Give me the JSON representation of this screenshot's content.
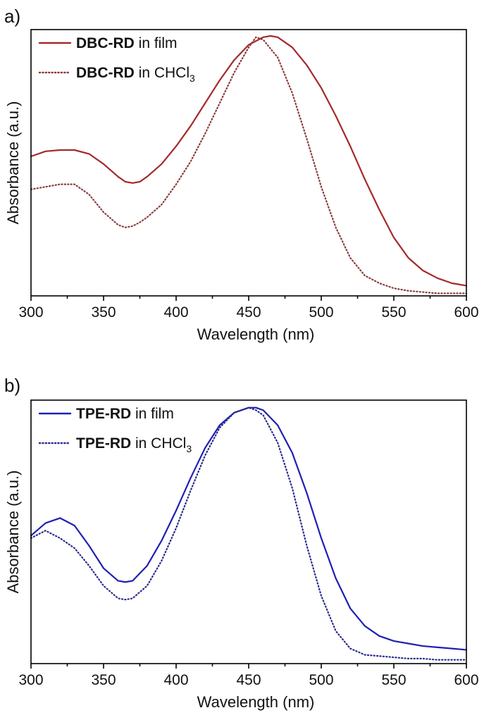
{
  "chart_data": [
    {
      "panel_label": "a)",
      "type": "line",
      "xlabel": "Wavelength (nm)",
      "ylabel": "Absorbance (a.u.)",
      "xlim": [
        300,
        600
      ],
      "ylim": [
        0,
        1.05
      ],
      "xticks": [
        "300",
        "350",
        "400",
        "450",
        "500",
        "550",
        "600"
      ],
      "yticks_shown": false,
      "legend_position": "top-left",
      "series": [
        {
          "name_bold": "DBC-RD",
          "name_rest": " in film",
          "name_sub": "",
          "color": "#a52a2a",
          "dash": "solid",
          "x": [
            300,
            310,
            320,
            330,
            340,
            350,
            360,
            365,
            370,
            375,
            380,
            390,
            400,
            410,
            420,
            430,
            440,
            450,
            460,
            465,
            470,
            480,
            490,
            500,
            510,
            520,
            530,
            540,
            550,
            560,
            570,
            580,
            590,
            600
          ],
          "y": [
            0.55,
            0.57,
            0.575,
            0.575,
            0.56,
            0.52,
            0.47,
            0.45,
            0.445,
            0.45,
            0.47,
            0.52,
            0.59,
            0.67,
            0.76,
            0.85,
            0.93,
            0.99,
            1.02,
            1.025,
            1.02,
            0.98,
            0.91,
            0.82,
            0.71,
            0.59,
            0.46,
            0.34,
            0.23,
            0.15,
            0.1,
            0.07,
            0.05,
            0.04
          ]
        },
        {
          "name_bold": "DBC-RD",
          "name_rest": " in CHCl",
          "name_sub": "3",
          "color": "#8b3a3a",
          "dash": "dotted",
          "x": [
            300,
            310,
            320,
            330,
            340,
            350,
            360,
            365,
            370,
            375,
            380,
            390,
            400,
            410,
            420,
            430,
            440,
            450,
            455,
            460,
            470,
            480,
            490,
            500,
            510,
            520,
            530,
            540,
            550,
            560,
            570,
            580,
            590,
            600
          ],
          "y": [
            0.42,
            0.43,
            0.44,
            0.44,
            0.4,
            0.33,
            0.28,
            0.27,
            0.275,
            0.29,
            0.31,
            0.36,
            0.44,
            0.53,
            0.64,
            0.76,
            0.88,
            0.98,
            1.02,
            1.01,
            0.94,
            0.8,
            0.62,
            0.43,
            0.27,
            0.15,
            0.08,
            0.05,
            0.03,
            0.02,
            0.015,
            0.01,
            0.01,
            0.01
          ]
        }
      ]
    },
    {
      "panel_label": "b)",
      "type": "line",
      "xlabel": "Wavelength (nm)",
      "ylabel": "Absorbance (a.u.)",
      "xlim": [
        300,
        600
      ],
      "ylim": [
        0,
        1.05
      ],
      "xticks": [
        "300",
        "350",
        "400",
        "450",
        "500",
        "550",
        "600"
      ],
      "yticks_shown": false,
      "legend_position": "top-left",
      "series": [
        {
          "name_bold": "TPE-RD",
          "name_rest": " in film",
          "name_sub": "",
          "color": "#1f1fb4",
          "dash": "solid",
          "x": [
            300,
            310,
            320,
            330,
            340,
            350,
            360,
            365,
            370,
            380,
            390,
            400,
            410,
            420,
            430,
            440,
            450,
            455,
            460,
            470,
            480,
            490,
            500,
            510,
            520,
            530,
            540,
            550,
            560,
            570,
            580,
            590,
            600
          ],
          "y": [
            0.51,
            0.56,
            0.58,
            0.55,
            0.47,
            0.38,
            0.33,
            0.325,
            0.33,
            0.39,
            0.49,
            0.61,
            0.74,
            0.86,
            0.95,
            1.0,
            1.02,
            1.02,
            1.01,
            0.95,
            0.84,
            0.68,
            0.5,
            0.34,
            0.22,
            0.15,
            0.11,
            0.09,
            0.08,
            0.07,
            0.065,
            0.06,
            0.055
          ]
        },
        {
          "name_bold": "TPE-RD",
          "name_rest": " in CHCl",
          "name_sub": "3",
          "color": "#2a2a8c",
          "dash": "dotted",
          "x": [
            300,
            310,
            320,
            330,
            340,
            350,
            360,
            365,
            370,
            380,
            390,
            400,
            410,
            420,
            430,
            440,
            450,
            455,
            460,
            470,
            480,
            490,
            500,
            510,
            520,
            530,
            540,
            550,
            560,
            570,
            580,
            590,
            600
          ],
          "y": [
            0.5,
            0.53,
            0.5,
            0.46,
            0.39,
            0.31,
            0.26,
            0.255,
            0.26,
            0.31,
            0.41,
            0.54,
            0.69,
            0.83,
            0.94,
            1.0,
            1.02,
            1.01,
            0.99,
            0.88,
            0.7,
            0.47,
            0.27,
            0.13,
            0.06,
            0.035,
            0.03,
            0.025,
            0.02,
            0.02,
            0.015,
            0.015,
            0.015
          ]
        }
      ]
    }
  ]
}
